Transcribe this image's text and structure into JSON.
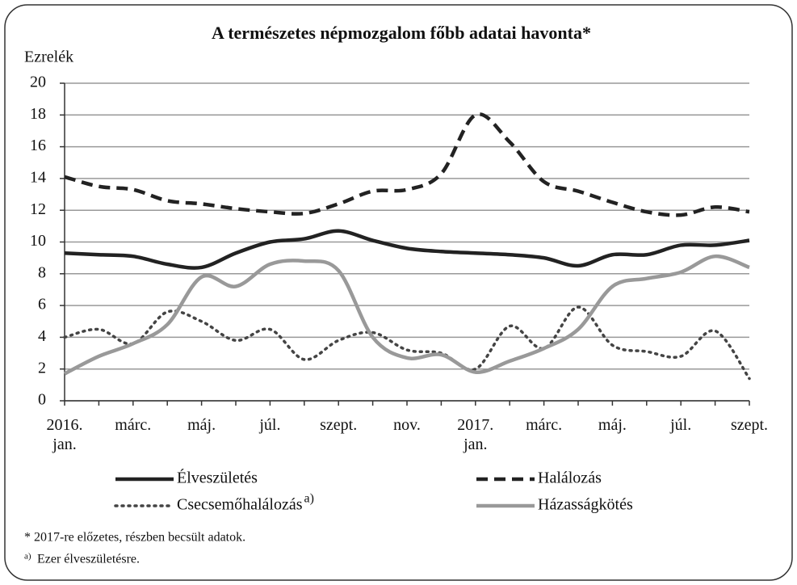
{
  "chart_data": {
    "type": "line",
    "title": "A természetes népmozgalom főbb adatai havonta*",
    "y_label": "Ezrelék",
    "categories": [
      "2016. jan.",
      null,
      "márc.",
      null,
      "máj.",
      null,
      "júl.",
      null,
      "szept.",
      null,
      "nov.",
      null,
      "2017. jan.",
      null,
      "márc.",
      null,
      "máj.",
      null,
      "júl.",
      null,
      "szept."
    ],
    "series": [
      {
        "name": "Élveszületés",
        "color": "#222222",
        "dash": "solid",
        "values": [
          9.3,
          9.2,
          9.1,
          8.6,
          8.4,
          9.3,
          10.0,
          10.2,
          10.7,
          10.1,
          9.6,
          9.4,
          9.3,
          9.2,
          9.0,
          8.5,
          9.2,
          9.2,
          9.8,
          9.8,
          10.1
        ]
      },
      {
        "name": "Halálozás",
        "color": "#222222",
        "dash": "dashed",
        "values": [
          14.1,
          13.5,
          13.3,
          12.6,
          12.4,
          12.1,
          11.9,
          11.8,
          12.4,
          13.2,
          13.3,
          14.3,
          18.0,
          16.3,
          13.8,
          13.2,
          12.5,
          11.9,
          11.7,
          12.2,
          11.9
        ]
      },
      {
        "name": "Csecsemőhalálozás",
        "note": "a)",
        "color": "#444444",
        "dash": "dotted",
        "values": [
          4.0,
          4.5,
          3.6,
          5.6,
          5.0,
          3.8,
          4.5,
          2.6,
          3.8,
          4.3,
          3.2,
          3.0,
          2.0,
          4.7,
          3.3,
          5.9,
          3.5,
          3.1,
          2.8,
          4.4,
          1.4
        ]
      },
      {
        "name": "Házasságkötés",
        "color": "#999999",
        "dash": "solid",
        "values": [
          1.7,
          2.8,
          3.6,
          4.8,
          7.8,
          7.2,
          8.6,
          8.8,
          8.2,
          4.0,
          2.7,
          2.9,
          1.8,
          2.5,
          3.3,
          4.5,
          7.2,
          7.7,
          8.1,
          9.1,
          8.4
        ]
      }
    ],
    "ylim": [
      0,
      20
    ],
    "yticks": [
      0,
      2,
      4,
      6,
      8,
      10,
      12,
      14,
      16,
      18,
      20
    ],
    "grid": true,
    "footnotes": [
      {
        "text": "* 2017-re előzetes, részben becsült adatok."
      },
      {
        "marker": "a)",
        "text": "Ezer élveszületésre."
      }
    ]
  }
}
